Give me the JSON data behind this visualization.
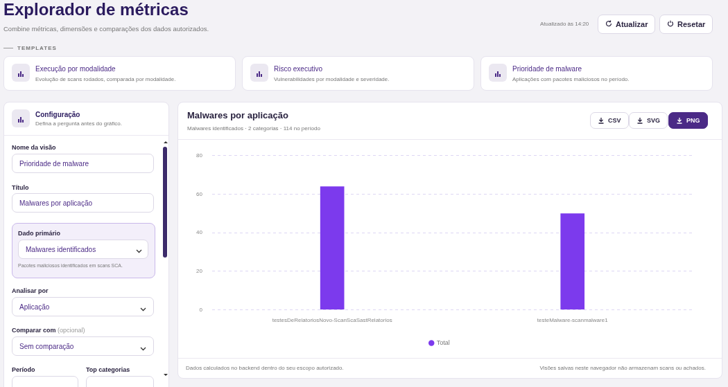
{
  "chart_data": [
    {
      "type": "other",
      "title": "Explorador de métricas",
      "subtitle": "Combine métricas, dimensões e comparações dos dados autorizados.",
      "annotations": [
        "Atualizado às 14:20",
        "Atualizar",
        "Resetar",
        "TEMPLATES",
        "Execução por modalidade",
        "Evolução de scans rodados, comparada por modalidade.",
        "Risco executivo",
        "Vulnerabilidades por modalidade e severidade.",
        "Prioridade de malware",
        "Aplicações com pacotes maliciosos no período.",
        "Configuração",
        "Defina a pergunta antes do gráfico.",
        "Nome da visão",
        "Prioridade de malware",
        "Título",
        "Malwares por aplicação",
        "Dado primário",
        "Malwares identificados",
        "Pacotes maliciosos identificados em scans SCA.",
        "Analisar por",
        "Aplicação",
        "Comparar com",
        "(opcional)",
        "Sem comparação",
        "Período",
        "Top categorias",
        "CSV",
        "SVG",
        "PNG"
      ]
    },
    {
      "type": "bar",
      "title": "Malwares por aplicação",
      "subtitle": "Malwares identificados · 2 categorias · 114 no período",
      "categories": [
        "testesDeRelatoriosNovo-ScanScaSastRelatorios",
        "testeMalware-scanmalware1"
      ],
      "series": [
        {
          "name": "Total",
          "color": "#7c3aed",
          "values": [
            64,
            50
          ]
        }
      ],
      "ylim": [
        0,
        80
      ],
      "yticks": [
        0,
        20,
        40,
        60,
        80
      ],
      "grid": "y",
      "legend": "bottom",
      "annotations": [
        "Dados calculados no backend dentro do seu escopo autorizado.",
        "Visões salvas neste navegador não armazenam scans ou achados."
      ]
    }
  ]
}
